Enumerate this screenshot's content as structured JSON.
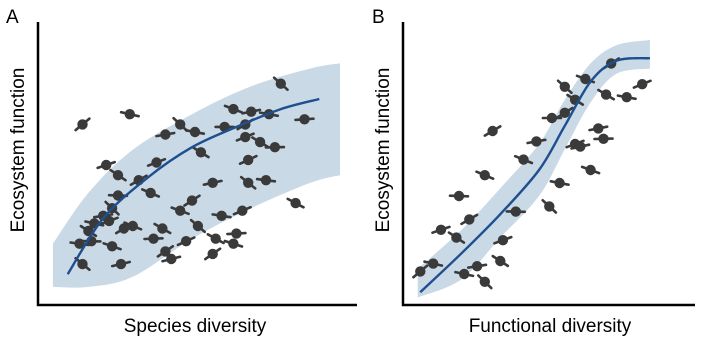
{
  "chart_data": [
    {
      "type": "scatter",
      "panel": "A",
      "xlabel": "Species diversity",
      "ylabel": "Ecosystem function",
      "xlim": [
        0,
        10
      ],
      "ylim": [
        0,
        10
      ],
      "grid": false,
      "band_upper": [
        [
          0.3,
          1.9
        ],
        [
          1.5,
          3.9
        ],
        [
          3.0,
          5.6
        ],
        [
          5.0,
          7.0
        ],
        [
          7.0,
          8.1
        ],
        [
          9.0,
          8.8
        ],
        [
          10.0,
          9.0
        ]
      ],
      "band_lower": [
        [
          10.0,
          4.6
        ],
        [
          9.0,
          4.3
        ],
        [
          7.0,
          3.3
        ],
        [
          5.0,
          2.1
        ],
        [
          3.0,
          0.6
        ],
        [
          1.5,
          0.2
        ],
        [
          0.3,
          0.2
        ]
      ],
      "fit": [
        [
          0.8,
          0.7
        ],
        [
          2.0,
          2.9
        ],
        [
          3.5,
          4.5
        ],
        [
          5.0,
          5.7
        ],
        [
          6.5,
          6.5
        ],
        [
          8.0,
          7.2
        ],
        [
          9.3,
          7.6
        ]
      ],
      "points": [
        [
          1.3,
          6.6
        ],
        [
          2.9,
          7.0
        ],
        [
          2.1,
          5.0
        ],
        [
          2.5,
          4.6
        ],
        [
          2.5,
          3.8
        ],
        [
          3.2,
          4.4
        ],
        [
          3.6,
          3.9
        ],
        [
          2.0,
          3.0
        ],
        [
          2.3,
          3.3
        ],
        [
          1.7,
          2.7
        ],
        [
          2.2,
          2.8
        ],
        [
          1.5,
          2.4
        ],
        [
          1.6,
          2.0
        ],
        [
          2.7,
          2.5
        ],
        [
          3.0,
          2.6
        ],
        [
          4.1,
          6.2
        ],
        [
          4.6,
          6.6
        ],
        [
          5.1,
          6.3
        ],
        [
          3.8,
          5.1
        ],
        [
          5.3,
          5.5
        ],
        [
          6.1,
          6.5
        ],
        [
          6.8,
          6.6
        ],
        [
          6.4,
          7.2
        ],
        [
          7.0,
          7.1
        ],
        [
          8.0,
          8.2
        ],
        [
          7.6,
          7.0
        ],
        [
          6.8,
          6.1
        ],
        [
          7.3,
          5.9
        ],
        [
          7.8,
          5.7
        ],
        [
          5.0,
          3.6
        ],
        [
          4.6,
          3.2
        ],
        [
          5.7,
          4.3
        ],
        [
          5.2,
          2.6
        ],
        [
          6.0,
          3.0
        ],
        [
          6.7,
          3.2
        ],
        [
          4.0,
          2.5
        ],
        [
          3.7,
          2.1
        ],
        [
          4.1,
          1.6
        ],
        [
          2.3,
          1.8
        ],
        [
          2.6,
          1.1
        ],
        [
          1.3,
          1.1
        ],
        [
          1.2,
          1.9
        ],
        [
          4.8,
          2.0
        ],
        [
          5.8,
          2.1
        ],
        [
          6.5,
          2.3
        ],
        [
          5.7,
          1.5
        ],
        [
          6.4,
          1.9
        ],
        [
          4.3,
          1.3
        ],
        [
          6.9,
          4.3
        ],
        [
          7.5,
          4.4
        ],
        [
          6.9,
          5.2
        ],
        [
          8.5,
          3.5
        ],
        [
          8.8,
          6.8
        ]
      ]
    },
    {
      "type": "scatter",
      "panel": "B",
      "xlabel": "Functional diversity",
      "ylabel": "Ecosystem function",
      "xlim": [
        0,
        10
      ],
      "ylim": [
        0,
        10
      ],
      "grid": false,
      "band_upper": [
        [
          0.3,
          1.2
        ],
        [
          2.0,
          2.7
        ],
        [
          3.5,
          4.3
        ],
        [
          5.0,
          6.0
        ],
        [
          6.0,
          7.7
        ],
        [
          7.0,
          9.1
        ],
        [
          8.0,
          9.8
        ],
        [
          9.3,
          10.0
        ]
      ],
      "band_lower": [
        [
          9.3,
          8.9
        ],
        [
          8.0,
          8.7
        ],
        [
          7.0,
          7.6
        ],
        [
          6.0,
          5.8
        ],
        [
          5.0,
          4.0
        ],
        [
          3.5,
          2.4
        ],
        [
          2.0,
          0.8
        ],
        [
          0.3,
          0.1
        ]
      ],
      "fit": [
        [
          0.4,
          0.3
        ],
        [
          2.0,
          1.8
        ],
        [
          3.5,
          3.3
        ],
        [
          5.0,
          5.0
        ],
        [
          6.0,
          6.7
        ],
        [
          7.0,
          8.4
        ],
        [
          8.0,
          9.2
        ],
        [
          9.3,
          9.3
        ]
      ],
      "points": [
        [
          0.4,
          1.1
        ],
        [
          0.9,
          1.4
        ],
        [
          1.2,
          2.7
        ],
        [
          1.8,
          2.4
        ],
        [
          1.9,
          4.0
        ],
        [
          2.3,
          3.1
        ],
        [
          2.9,
          4.8
        ],
        [
          2.6,
          1.3
        ],
        [
          2.9,
          0.7
        ],
        [
          2.1,
          1.0
        ],
        [
          3.6,
          2.3
        ],
        [
          3.5,
          1.5
        ],
        [
          4.1,
          3.4
        ],
        [
          3.2,
          6.5
        ],
        [
          4.4,
          5.4
        ],
        [
          4.9,
          6.1
        ],
        [
          5.4,
          3.6
        ],
        [
          5.8,
          4.5
        ],
        [
          6.4,
          6.0
        ],
        [
          6.4,
          7.7
        ],
        [
          5.5,
          7.0
        ],
        [
          6.0,
          7.2
        ],
        [
          6.8,
          8.5
        ],
        [
          7.3,
          6.6
        ],
        [
          6.0,
          8.2
        ],
        [
          8.4,
          7.8
        ],
        [
          9.0,
          8.3
        ],
        [
          7.6,
          7.9
        ],
        [
          7.5,
          6.2
        ],
        [
          7.8,
          9.1
        ],
        [
          7.0,
          5.0
        ],
        [
          6.6,
          5.9
        ]
      ]
    }
  ]
}
